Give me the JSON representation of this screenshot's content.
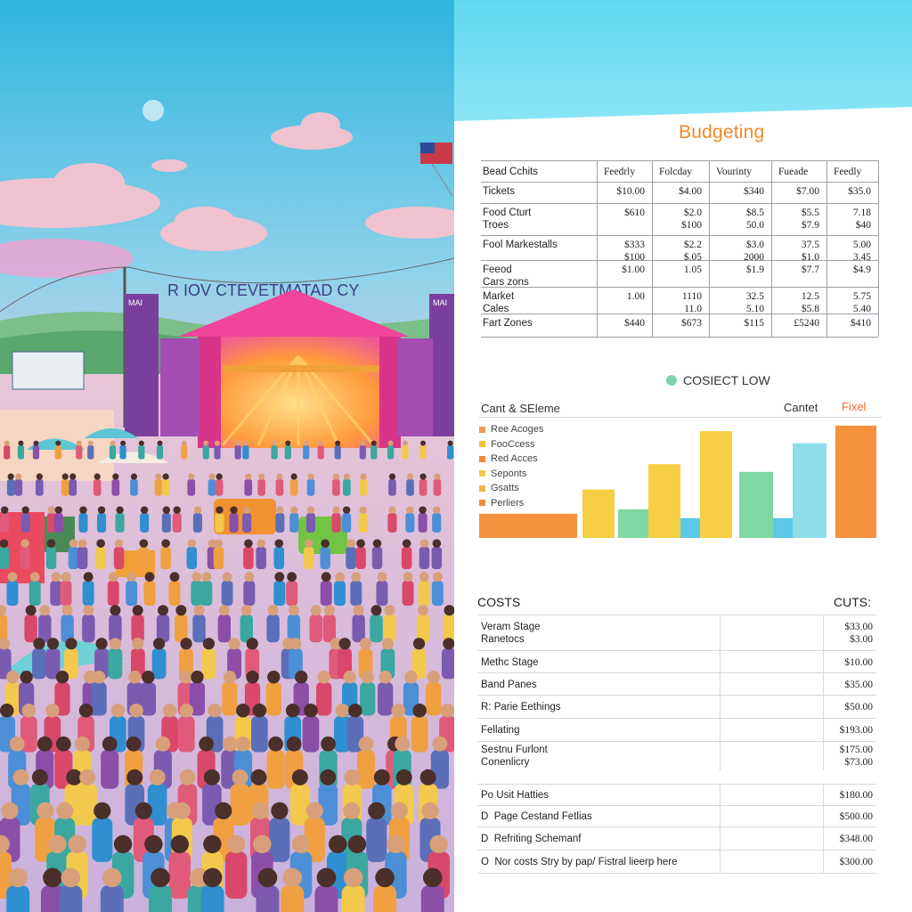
{
  "scene": {
    "banner_text": "R IOV CTEVETMATAD CY",
    "stage_sign_left": "MAI",
    "stage_sign_right": "MAI"
  },
  "panel": {
    "title": "Budgeting",
    "table": {
      "headers": [
        "Bead Cchits",
        "Feedrly",
        "Folcday",
        "Vourinty",
        "Fueade",
        "Feedly"
      ],
      "rows": [
        {
          "label": "Tickets",
          "cells": [
            "$10.00",
            "$4.00",
            "$340",
            "$7.00",
            "$35.0"
          ]
        },
        {
          "label": "Food Cturt\nTroes",
          "cells": [
            "$610",
            "$2.0\n$100",
            "$8.5\n50.0",
            "$5.5\n$7.9",
            "7.18\n$40"
          ]
        },
        {
          "label": "Fool Markestalls",
          "cells": [
            "$333\n$100",
            "$2.2\n$.05",
            "$3.0\n2000",
            "37.5\n$1.0",
            "5.00\n3.45"
          ]
        },
        {
          "label": "Feeod\nCars zons",
          "cells": [
            "$1.00",
            "1.05",
            "$1.9",
            "$7.7",
            "$4.9"
          ]
        },
        {
          "label": "Market\nCales",
          "cells": [
            "1.00",
            "1110\n11.0",
            "32.5\n5.10",
            "12.5\n$5.8",
            "5.75\n5.40"
          ]
        },
        {
          "label": "Fart Zones",
          "cells": [
            "$440",
            "$673",
            "$115",
            "£5240",
            "$410"
          ]
        }
      ]
    },
    "legend_label": "COSIECT LOW",
    "chart_header_left": "Cant & SEleme",
    "chart_header_mid": "Cantet",
    "chart_header_right": "Fixel",
    "bottom_header_left": "COSTS",
    "bottom_header_right": "CUTS:",
    "cost_rows": [
      {
        "name": "Veram Stage\nRanetocs",
        "amount": "$33.00\n$3.00"
      },
      {
        "name": "Methc Stage",
        "amount": "$10.00"
      },
      {
        "name": "Band Panes",
        "amount": "$35.00"
      },
      {
        "name": "R: Parie Eethings",
        "amount": "$50.00"
      },
      {
        "name": "Fellating",
        "amount": "$193.00"
      },
      {
        "name": "Sestnu Furlont\nConenlicry",
        "amount": "$175.00\n$73.00"
      },
      {
        "name": "Po Usit Hatties",
        "amount": "$180.00"
      },
      {
        "name": "D  Page Cestand Fetlias",
        "amount": "$500.00"
      },
      {
        "name": "D  Refriting Schemanf",
        "amount": "$348.00"
      },
      {
        "name": "O  Nor costs Stry by pap/ Fistral lieerp here",
        "amount": "$300.00"
      }
    ]
  },
  "chart_data": {
    "type": "bar",
    "series": [
      {
        "name": "Ree Acoges",
        "color": "#f39a4a"
      },
      {
        "name": "FooCcess",
        "color": "#f2c23a"
      },
      {
        "name": "Red Acces",
        "color": "#f28a36"
      },
      {
        "name": "Seponts",
        "color": "#f5c84a"
      },
      {
        "name": "Gsatts",
        "color": "#f3b44c"
      },
      {
        "name": "Perliers",
        "color": "#f28a36"
      }
    ],
    "bars": [
      {
        "value": 22,
        "color": "#f5923e"
      },
      {
        "value": 22,
        "color": "#f5923e"
      },
      {
        "value": 44,
        "color": "#f7cf45"
      },
      {
        "value": 26,
        "color": "#7fd8a3"
      },
      {
        "value": 67,
        "color": "#f7cf45"
      },
      {
        "value": 18,
        "color": "#5cc8e8"
      },
      {
        "value": 97,
        "color": "#f7cf45"
      },
      {
        "value": 60,
        "color": "#7fd8a3"
      },
      {
        "value": 18,
        "color": "#5cc8e8"
      },
      {
        "value": 86,
        "color": "#8fdcea"
      },
      {
        "value": 102,
        "color": "#f5923e"
      }
    ],
    "ylim": [
      0,
      110
    ]
  }
}
